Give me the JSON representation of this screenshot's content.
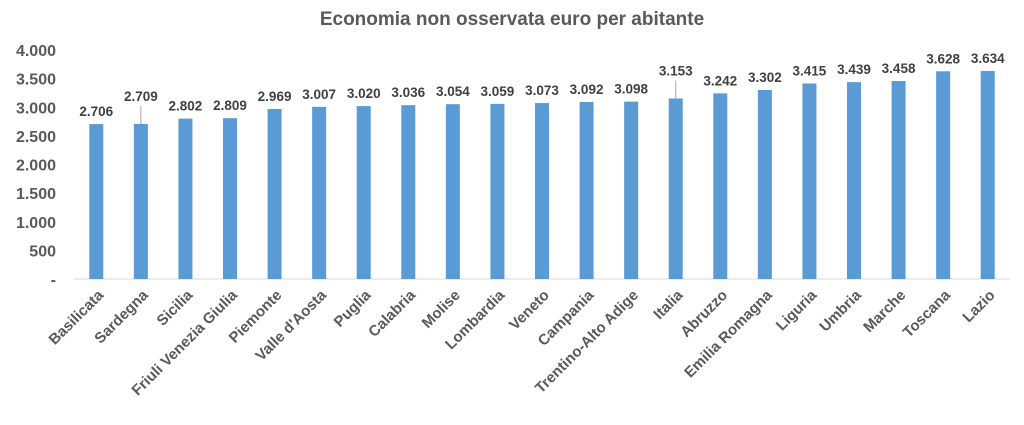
{
  "chart_data": {
    "type": "bar",
    "title": "Economia non osservata euro per abitante",
    "xlabel": "",
    "ylabel": "",
    "categories": [
      "Basilicata",
      "Sardegna",
      "Sicilia",
      "Friuli Venezia Giulia",
      "Piemonte",
      "Valle d'Aosta",
      "Puglia",
      "Calabria",
      "Molise",
      "Lombardia",
      "Veneto",
      "Campania",
      "Trentino-Alto Adige",
      "Italia",
      "Abruzzo",
      "Emilia Romagna",
      "Liguria",
      "Umbria",
      "Marche",
      "Toscana",
      "Lazio"
    ],
    "values": [
      2706,
      2709,
      2802,
      2809,
      2969,
      3007,
      3020,
      3036,
      3054,
      3059,
      3073,
      3092,
      3098,
      3153,
      3242,
      3302,
      3415,
      3439,
      3458,
      3628,
      3634
    ],
    "data_labels": [
      "2.706",
      "2.709",
      "2.802",
      "2.809",
      "2.969",
      "3.007",
      "3.020",
      "3.036",
      "3.054",
      "3.059",
      "3.073",
      "3.092",
      "3.098",
      "3.153",
      "3.242",
      "3.302",
      "3.415",
      "3.439",
      "3.458",
      "3.628",
      "3.634"
    ],
    "highlight_category": "Italia",
    "ylim": [
      0,
      4000
    ],
    "yticks": [
      0,
      500,
      1000,
      1500,
      2000,
      2500,
      3000,
      3500,
      4000
    ],
    "ytick_labels": [
      "-",
      "500",
      "1.000",
      "1.500",
      "2.000",
      "2.500",
      "3.000",
      "3.500",
      "4.000"
    ],
    "grid": false,
    "legend": "none",
    "colors": {
      "bar": "#5B9BD5",
      "highlight_label": "#FF0000",
      "label": "#404040",
      "axis_text": "#595959",
      "axis_line": "#D9D9D9"
    }
  }
}
